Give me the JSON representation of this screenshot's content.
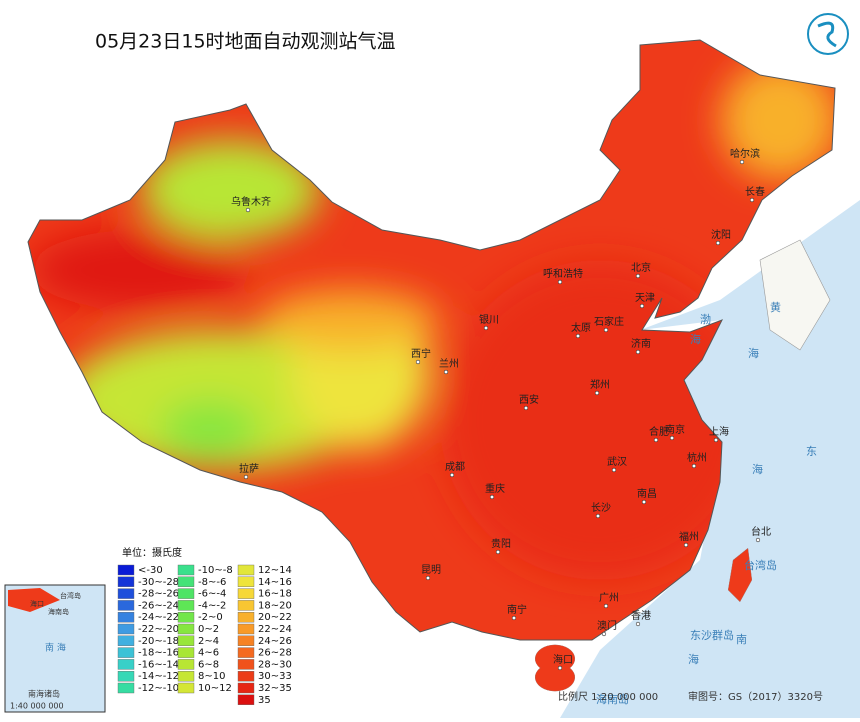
{
  "title": "05月23日15时地面自动观测站气温",
  "cities": [
    "乌鲁木齐",
    "哈尔滨",
    "长春",
    "沈阳",
    "呼和浩特",
    "北京",
    "天津",
    "石家庄",
    "太原",
    "济南",
    "银川",
    "西宁",
    "兰州",
    "西安",
    "郑州",
    "合肥",
    "南京",
    "上海",
    "杭州",
    "武汉",
    "成都",
    "重庆",
    "拉萨",
    "南昌",
    "长沙",
    "贵阳",
    "福州",
    "台北",
    "昆明",
    "南宁",
    "广州",
    "澳门",
    "香港",
    "海口"
  ],
  "seas": [
    "黄",
    "海",
    "东",
    "海",
    "南",
    "海",
    "渤",
    "海",
    "台湾岛",
    "东沙群岛",
    "海南岛"
  ],
  "legend": {
    "title": "单位：摄氏度",
    "items": [
      {
        "label": "<-30",
        "color": "#0a1bd6"
      },
      {
        "label": "-30~-28",
        "color": "#1434d8"
      },
      {
        "label": "-28~-26",
        "color": "#1f4fdb"
      },
      {
        "label": "-26~-24",
        "color": "#2a68dd"
      },
      {
        "label": "-24~-22",
        "color": "#3582e0"
      },
      {
        "label": "-22~-20",
        "color": "#3f9be2"
      },
      {
        "label": "-20~-18",
        "color": "#40b0e0"
      },
      {
        "label": "-18~-16",
        "color": "#3cc2d6"
      },
      {
        "label": "-16~-14",
        "color": "#38d0c8"
      },
      {
        "label": "-14~-12",
        "color": "#36d8b6"
      },
      {
        "label": "-12~-10",
        "color": "#36dca2"
      },
      {
        "label": "-10~-8",
        "color": "#3ae08c"
      },
      {
        "label": "-8~-6",
        "color": "#44e278"
      },
      {
        "label": "-6~-4",
        "color": "#4ee466"
      },
      {
        "label": "-4~-2",
        "color": "#5ee656"
      },
      {
        "label": "-2~0",
        "color": "#72e64a"
      },
      {
        "label": "0~2",
        "color": "#86e640"
      },
      {
        "label": "2~4",
        "color": "#98e63a"
      },
      {
        "label": "4~6",
        "color": "#a8e636"
      },
      {
        "label": "6~8",
        "color": "#b8e634"
      },
      {
        "label": "8~10",
        "color": "#c6e634"
      },
      {
        "label": "10~12",
        "color": "#d4e636"
      },
      {
        "label": "12~14",
        "color": "#e2e63a"
      },
      {
        "label": "14~16",
        "color": "#eee43c"
      },
      {
        "label": "16~18",
        "color": "#f6d838"
      },
      {
        "label": "18~20",
        "color": "#f8c632"
      },
      {
        "label": "20~22",
        "color": "#f8b02c"
      },
      {
        "label": "22~24",
        "color": "#f89a28"
      },
      {
        "label": "24~26",
        "color": "#f68224"
      },
      {
        "label": "26~28",
        "color": "#f46a20"
      },
      {
        "label": "28~30",
        "color": "#f0521c"
      },
      {
        "label": "30~33",
        "color": "#ec3c18"
      },
      {
        "label": "32~35",
        "color": "#e62614"
      },
      {
        "label": "35",
        "color": "#dc1010"
      }
    ]
  },
  "footer": {
    "scale": "比例尺  1:20 000 000",
    "review": "审图号：GS（2017）3320号"
  },
  "inset": {
    "title": "南海诸岛",
    "scale": "1:40 000 000",
    "sea": "南 海",
    "labels": [
      "台湾岛",
      "海南岛",
      "海口"
    ]
  }
}
